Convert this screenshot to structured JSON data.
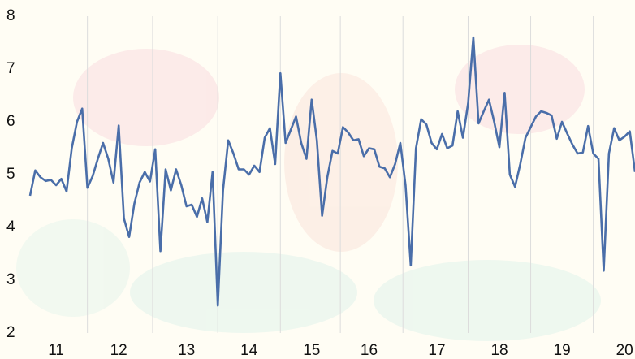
{
  "chart_data": {
    "type": "line",
    "categories": [
      null,
      null,
      null,
      null,
      null,
      "11",
      null,
      null,
      null,
      null,
      null,
      null,
      null,
      null,
      null,
      null,
      null,
      "12",
      null,
      null,
      null,
      null,
      null,
      null,
      null,
      null,
      null,
      null,
      null,
      null,
      "13",
      null,
      null,
      null,
      null,
      null,
      null,
      null,
      null,
      null,
      null,
      null,
      "14",
      null,
      null,
      null,
      null,
      null,
      null,
      null,
      null,
      null,
      null,
      null,
      "15",
      null,
      null,
      null,
      null,
      null,
      null,
      null,
      null,
      null,
      null,
      "16",
      null,
      null,
      null,
      null,
      null,
      null,
      null,
      null,
      null,
      null,
      null,
      null,
      "17",
      null,
      null,
      null,
      null,
      null,
      null,
      null,
      null,
      null,
      null,
      null,
      "18",
      null,
      null,
      null,
      null,
      null,
      null,
      null,
      null,
      null,
      null,
      null,
      "19",
      null,
      null,
      null,
      null,
      null,
      null,
      null,
      null,
      null,
      null,
      null,
      "20",
      null,
      null
    ],
    "values": [
      4.6,
      5.08,
      4.95,
      4.88,
      4.9,
      4.8,
      4.92,
      4.68,
      5.5,
      6.0,
      6.25,
      4.75,
      4.97,
      5.3,
      5.6,
      5.3,
      4.85,
      5.93,
      4.17,
      3.82,
      4.45,
      4.85,
      5.05,
      4.87,
      5.48,
      3.55,
      5.1,
      4.7,
      5.1,
      4.8,
      4.4,
      4.43,
      4.2,
      4.55,
      4.1,
      5.05,
      2.52,
      4.7,
      5.65,
      5.4,
      5.1,
      5.1,
      5.0,
      5.17,
      5.05,
      5.7,
      5.88,
      5.2,
      6.92,
      5.6,
      5.85,
      6.1,
      5.6,
      5.3,
      6.42,
      5.65,
      4.22,
      4.95,
      5.45,
      5.4,
      5.9,
      5.8,
      5.65,
      5.67,
      5.35,
      5.5,
      5.48,
      5.15,
      5.12,
      4.95,
      5.2,
      5.6,
      4.8,
      3.28,
      5.5,
      6.05,
      5.95,
      5.6,
      5.48,
      5.77,
      5.5,
      5.55,
      6.2,
      5.7,
      6.35,
      7.6,
      5.97,
      6.2,
      6.42,
      6.0,
      5.52,
      6.55,
      5.0,
      4.77,
      5.2,
      5.7,
      5.9,
      6.1,
      6.2,
      6.17,
      6.12,
      5.68,
      6.0,
      5.78,
      5.57,
      5.4,
      5.42,
      5.92,
      5.4,
      5.3,
      3.18,
      5.4,
      5.88,
      5.65,
      5.72,
      5.82,
      5.05
    ],
    "color": "#4a6ea9",
    "ylim": [
      2,
      8
    ],
    "yticks": [
      2,
      3,
      4,
      5,
      6,
      7,
      8
    ],
    "grid": true
  }
}
